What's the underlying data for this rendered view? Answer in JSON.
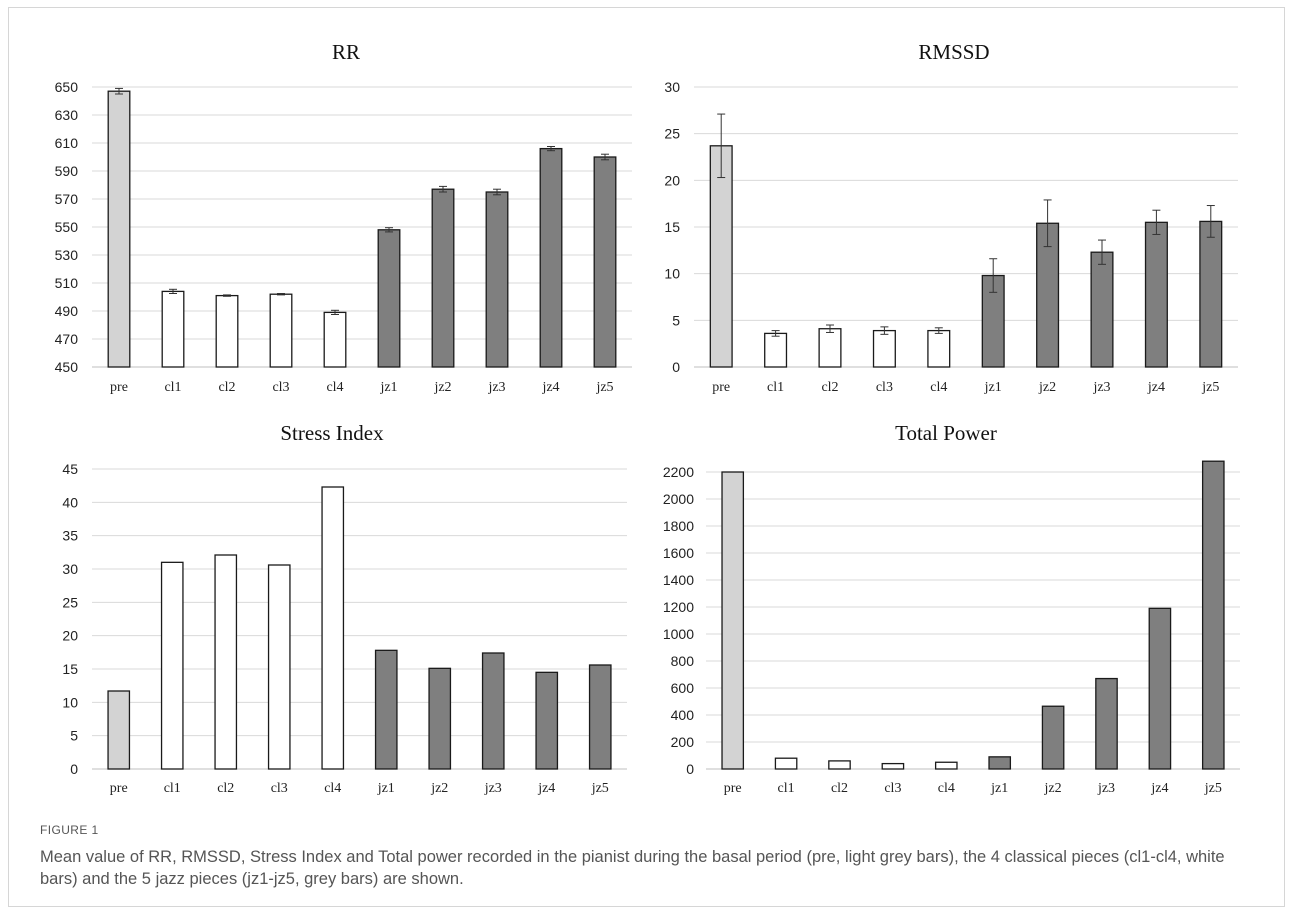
{
  "figure": {
    "label": "FIGURE 1",
    "caption": "Mean value of RR, RMSSD, Stress Index and Total power recorded in the pianist during the basal period (pre, light grey bars), the 4 classical pieces (cl1-cl4, white bars) and the 5 jazz pieces (jz1-jz5, grey bars) are shown."
  },
  "colors": {
    "pre": "#d3d3d3",
    "classical": "#ffffff",
    "jazz": "#7f7f7f",
    "bar_stroke": "#1a1a1a",
    "grid": "#d9d9d9",
    "axis": "#bfbfbf"
  },
  "chart_data": [
    {
      "type": "bar",
      "title": "RR",
      "categories": [
        "pre",
        "cl1",
        "cl2",
        "cl3",
        "cl4",
        "jz1",
        "jz2",
        "jz3",
        "jz4",
        "jz5"
      ],
      "values": [
        647,
        504,
        501,
        502,
        489,
        548,
        577,
        575,
        606,
        600
      ],
      "errors": [
        2,
        1.5,
        0.5,
        0.5,
        1.5,
        1.5,
        2,
        2,
        1.5,
        2
      ],
      "ylim": [
        450,
        650
      ],
      "yticks": [
        450,
        470,
        490,
        510,
        530,
        550,
        570,
        590,
        610,
        630,
        650
      ],
      "grid": true
    },
    {
      "type": "bar",
      "title": "RMSSD",
      "categories": [
        "pre",
        "cl1",
        "cl2",
        "cl3",
        "cl4",
        "jz1",
        "jz2",
        "jz3",
        "jz4",
        "jz5"
      ],
      "values": [
        23.7,
        3.6,
        4.1,
        3.9,
        3.9,
        9.8,
        15.4,
        12.3,
        15.5,
        15.6
      ],
      "errors": [
        3.4,
        0.3,
        0.4,
        0.4,
        0.3,
        1.8,
        2.5,
        1.3,
        1.3,
        1.7
      ],
      "ylim": [
        0,
        30
      ],
      "yticks": [
        0,
        5,
        10,
        15,
        20,
        25,
        30
      ],
      "grid": true
    },
    {
      "type": "bar",
      "title": "Stress Index",
      "categories": [
        "pre",
        "cl1",
        "cl2",
        "cl3",
        "cl4",
        "jz1",
        "jz2",
        "jz3",
        "jz4",
        "jz5"
      ],
      "values": [
        11.7,
        31,
        32.1,
        30.6,
        42.3,
        17.8,
        15.1,
        17.4,
        14.5,
        15.6
      ],
      "ylim": [
        0,
        45
      ],
      "yticks": [
        0,
        5,
        10,
        15,
        20,
        25,
        30,
        35,
        40,
        45
      ],
      "grid": true
    },
    {
      "type": "bar",
      "title": "Total Power",
      "categories": [
        "pre",
        "cl1",
        "cl2",
        "cl3",
        "cl4",
        "jz1",
        "jz2",
        "jz3",
        "jz4",
        "jz5"
      ],
      "values": [
        2200,
        80,
        60,
        40,
        50,
        90,
        465,
        670,
        1190,
        2280
      ],
      "ylim": [
        0,
        2200
      ],
      "yticks": [
        0,
        200,
        400,
        600,
        800,
        1000,
        1200,
        1400,
        1600,
        1800,
        2000,
        2200
      ],
      "grid": true
    }
  ]
}
